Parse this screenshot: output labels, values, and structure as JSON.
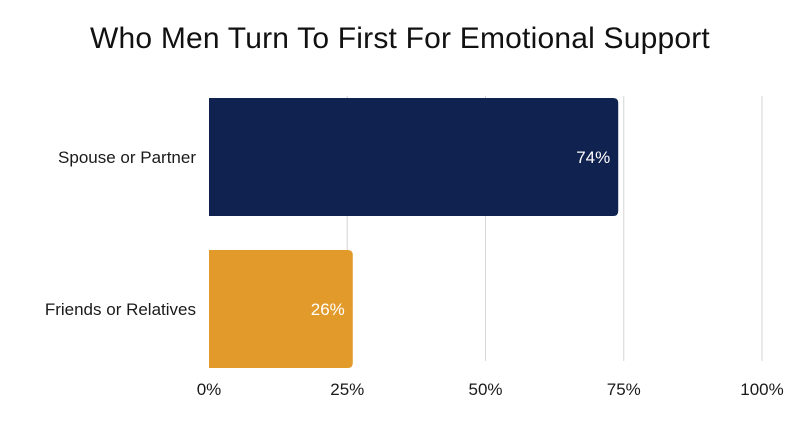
{
  "chart_data": {
    "type": "bar",
    "orientation": "horizontal",
    "title": "Who Men Turn To First For Emotional Support",
    "xlabel": "",
    "ylabel": "",
    "categories": [
      "Spouse or Partner",
      "Friends or Relatives"
    ],
    "values": [
      74,
      26
    ],
    "value_labels": [
      "74%",
      "26%"
    ],
    "colors": [
      "#10224f",
      "#e29b2b"
    ],
    "xlim": [
      0,
      100
    ],
    "xticks": [
      0,
      25,
      50,
      75,
      100
    ],
    "xtick_labels": [
      "0%",
      "25%",
      "50%",
      "75%",
      "100%"
    ],
    "grid": "vertical",
    "legend": "none"
  }
}
